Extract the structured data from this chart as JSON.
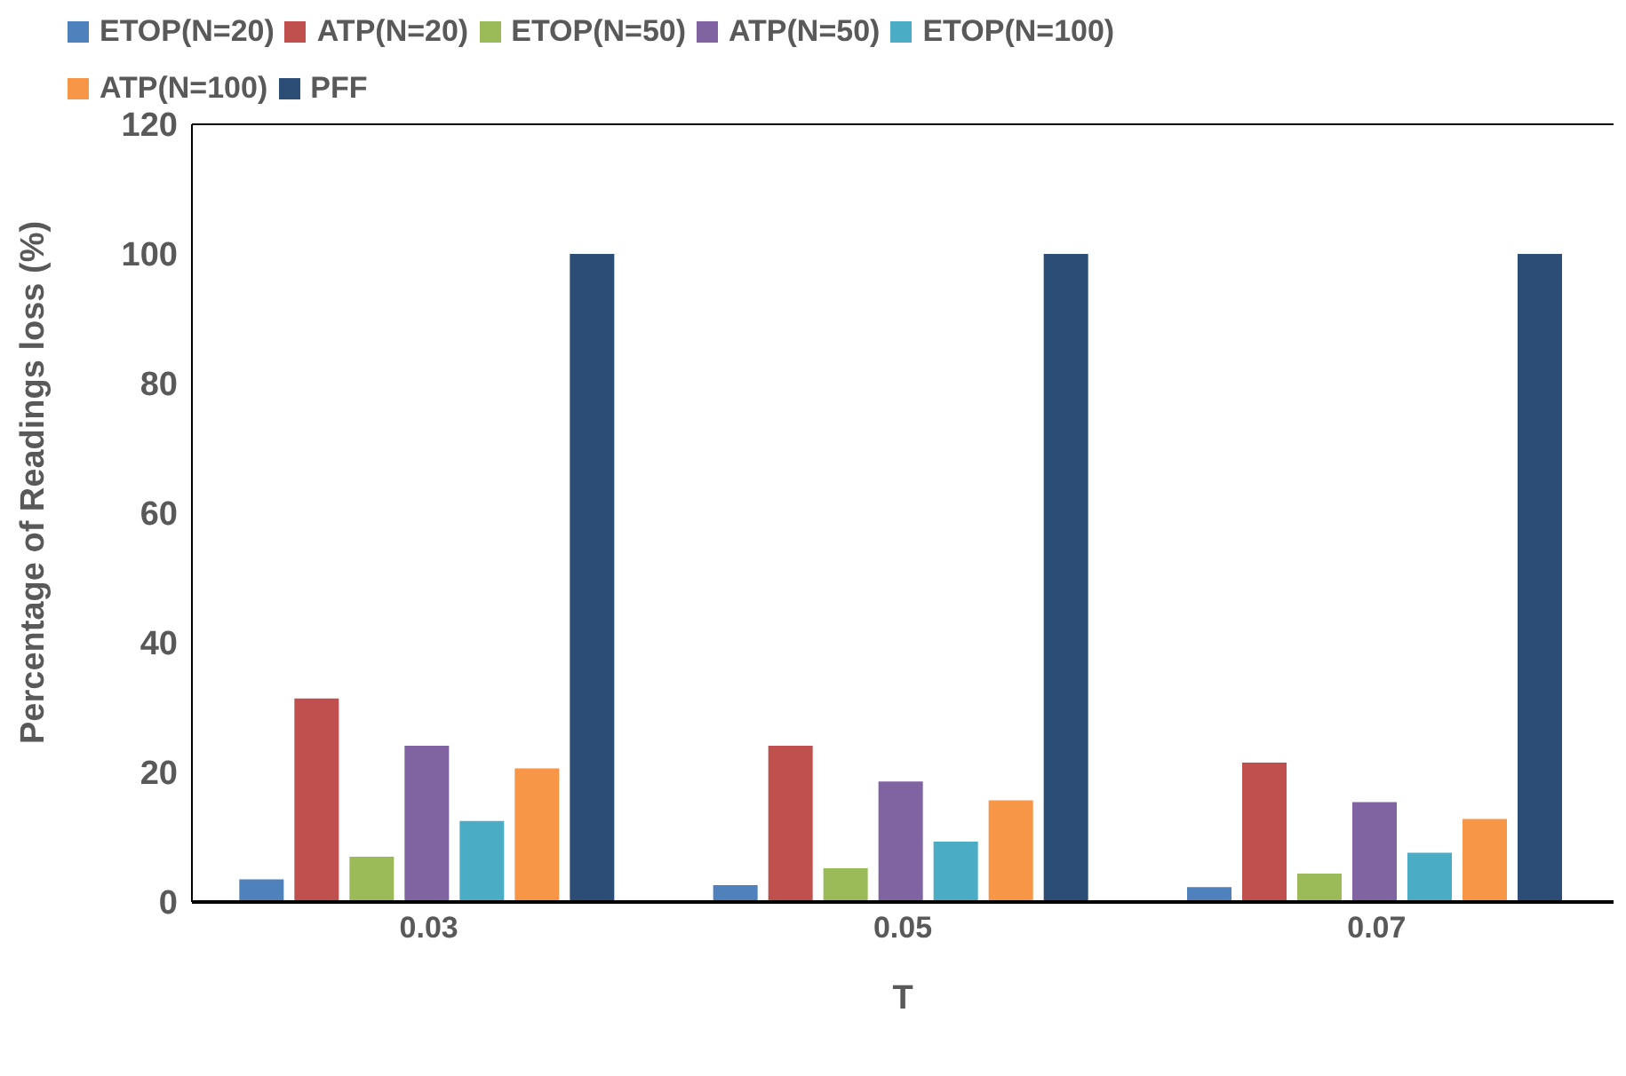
{
  "chart_data": {
    "type": "bar",
    "xlabel": "T",
    "ylabel": "Percentage of Readings loss (%)",
    "categories": [
      "0.03",
      "0.05",
      "0.07"
    ],
    "series": [
      {
        "name": "ETOP(N=20)",
        "color": "#4f81bd",
        "values": [
          3.5,
          2.6,
          2.3
        ]
      },
      {
        "name": "ATP(N=20)",
        "color": "#c0504d",
        "values": [
          31.4,
          24.1,
          21.5
        ]
      },
      {
        "name": "ETOP(N=50)",
        "color": "#9bbb59",
        "values": [
          7,
          5.2,
          4.4
        ]
      },
      {
        "name": "ATP(N=50)",
        "color": "#8064a2",
        "values": [
          24.1,
          18.6,
          15.4
        ]
      },
      {
        "name": "ETOP(N=100)",
        "color": "#4bacc6",
        "values": [
          12.5,
          9.3,
          7.6
        ]
      },
      {
        "name": "ATP(N=100)",
        "color": "#f79646",
        "values": [
          20.6,
          15.7,
          12.8
        ]
      },
      {
        "name": "PFF",
        "color": "#2c4d75",
        "values": [
          100,
          100,
          100
        ]
      }
    ],
    "ylim": [
      0,
      120
    ],
    "yticks": [
      0,
      20,
      40,
      60,
      80,
      100,
      120
    ],
    "grid": false,
    "legend": "top left"
  }
}
